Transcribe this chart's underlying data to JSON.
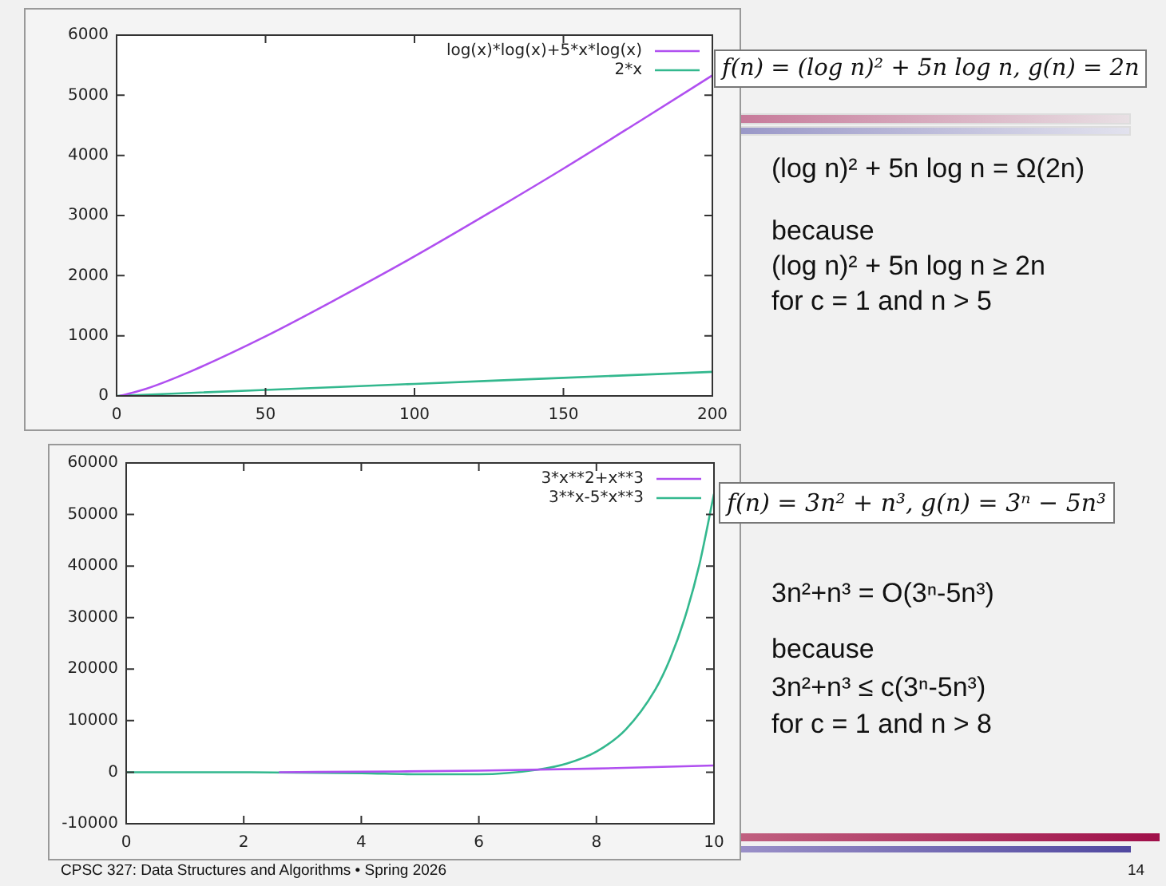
{
  "chart_data": [
    {
      "type": "line",
      "xlim": [
        0,
        200
      ],
      "xticks": [
        0,
        50,
        100,
        150,
        200
      ],
      "ylim": [
        0,
        6000
      ],
      "yticks": [
        0,
        1000,
        2000,
        3000,
        4000,
        5000,
        6000
      ],
      "grid": false,
      "legend": "top right",
      "marker": "none",
      "line_style": "solid",
      "series": [
        {
          "name": "log(x)*log(x)+5*x*log(x)",
          "color": "#b04ff0",
          "x": [
            1,
            10,
            25,
            50,
            75,
            100,
            125,
            150,
            175,
            200
          ],
          "values": [
            0,
            120,
            410,
            990,
            1640,
            2320,
            3040,
            3780,
            4550,
            5330
          ]
        },
        {
          "name": "2*x",
          "color": "#33b88e",
          "x": [
            0,
            50,
            100,
            150,
            200
          ],
          "values": [
            0,
            100,
            200,
            300,
            400
          ]
        }
      ],
      "annotations": [
        "f(n) = (log n)² + 5n log n, g(n) = 2n",
        "(log n)² + 5n log n = Ω(2n)",
        "because",
        "(log n)² + 5n log n ≥ 2n",
        "for c = 1 and n > 5"
      ]
    },
    {
      "type": "line",
      "xlim": [
        0,
        10
      ],
      "xticks": [
        0,
        2,
        4,
        6,
        8,
        10
      ],
      "ylim": [
        -10000,
        60000
      ],
      "yticks": [
        -10000,
        0,
        10000,
        20000,
        30000,
        40000,
        50000,
        60000
      ],
      "grid": false,
      "legend": "top right",
      "marker": "none",
      "line_style": "solid",
      "series": [
        {
          "name": "3*x**2+x**3",
          "color": "#b04ff0",
          "x": [
            2.6,
            4,
            6,
            8,
            10
          ],
          "values": [
            0,
            100,
            300,
            700,
            1300
          ]
        },
        {
          "name": "3**x-5*x**3",
          "color": "#33b88e",
          "x": [
            0,
            2,
            4,
            5,
            6,
            7,
            7.5,
            8,
            8.5,
            9,
            9.25,
            9.5,
            9.75,
            10
          ],
          "values": [
            0,
            0,
            -200,
            -400,
            -400,
            500,
            1700,
            4000,
            8300,
            16000,
            21900,
            29800,
            40200,
            54000
          ]
        }
      ],
      "annotations": [
        "f(n) = 3n² + n³, g(n) = 3ⁿ − 5n³",
        "3n²+n³ = O(3ⁿ-5n³)",
        "because",
        "3n²+n³ ≤ c(3ⁿ-5n³)",
        "for c = 1 and n > 8",
        "CPSC 327: Data Structures and Algorithms • Spring 2026",
        "14"
      ]
    }
  ]
}
